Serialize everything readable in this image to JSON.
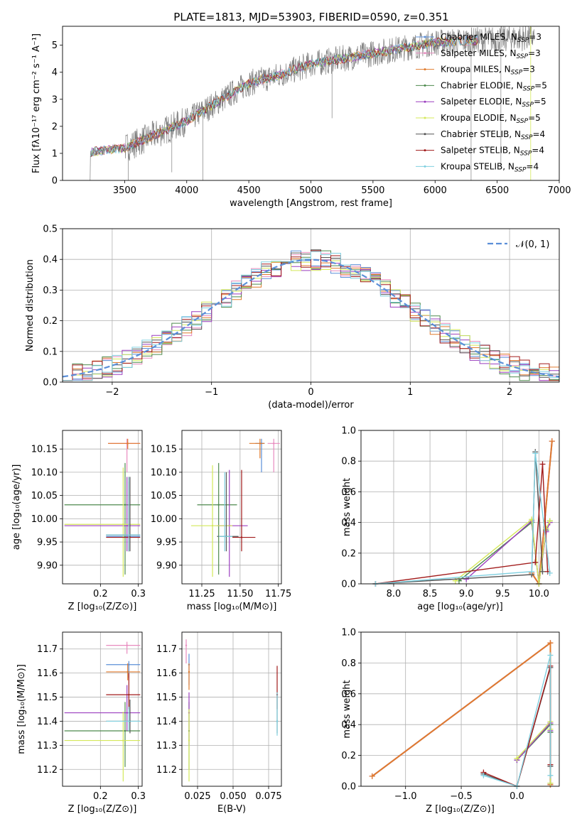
{
  "title": "PLATE=1813, MJD=53903, FIBERID=0590, z=0.351",
  "colors": {
    "Chabrier MILES": "#5b8fd8",
    "Salpeter MILES": "#e88bbf",
    "Kroupa MILES": "#e07b2e",
    "Chabrier ELODIE": "#4e8a4e",
    "Salpeter ELODIE": "#9b3fbf",
    "Kroupa ELODIE": "#d4e85a",
    "Chabrier STELIB": "#555555",
    "Salpeter STELIB": "#a11a1a",
    "Kroupa STELIB": "#80d0e0",
    "gauss": "#5b8fd8"
  },
  "chart_data": [
    {
      "type": "line",
      "name": "spectrum",
      "xlabel": "wavelength [Angstrom, rest frame]",
      "ylabel": "Flux [fλ10⁻¹⁷ erg cm⁻² s⁻¹ A⁻¹]",
      "xlim": [
        3000,
        7000
      ],
      "ylim": [
        0,
        5.7
      ],
      "xticks": [
        "3500",
        "4000",
        "4500",
        "5000",
        "5500",
        "6000",
        "6500",
        "7000"
      ],
      "yticks": [
        "0",
        "1",
        "2",
        "3",
        "4",
        "5"
      ],
      "observed_flux_anchors": [
        [
          3225,
          1.05
        ],
        [
          3500,
          1.2
        ],
        [
          3700,
          1.6
        ],
        [
          4000,
          2.2
        ],
        [
          4250,
          2.9
        ],
        [
          4500,
          3.6
        ],
        [
          4750,
          3.9
        ],
        [
          5000,
          4.3
        ],
        [
          5250,
          4.5
        ],
        [
          5500,
          4.7
        ],
        [
          5750,
          4.9
        ],
        [
          6000,
          5.1
        ],
        [
          6400,
          5.2
        ],
        [
          6800,
          5.3
        ]
      ],
      "legend": [
        {
          "label": "Chabrier MILES, N",
          "sub": "SSP",
          "val": "=3"
        },
        {
          "label": "Salpeter MILES, N",
          "sub": "SSP",
          "val": "=3"
        },
        {
          "label": "Kroupa MILES, N",
          "sub": "SSP",
          "val": "=3"
        },
        {
          "label": "Chabrier ELODIE, N",
          "sub": "SSP",
          "val": "=5"
        },
        {
          "label": "Salpeter ELODIE, N",
          "sub": "SSP",
          "val": "=5"
        },
        {
          "label": "Kroupa ELODIE, N",
          "sub": "SSP",
          "val": "=5"
        },
        {
          "label": "Chabrier STELIB, N",
          "sub": "SSP",
          "val": "=4"
        },
        {
          "label": "Salpeter STELIB, N",
          "sub": "SSP",
          "val": "=4"
        },
        {
          "label": "Kroupa STELIB, N",
          "sub": "SSP",
          "val": "=4"
        }
      ]
    },
    {
      "type": "line",
      "name": "residuals",
      "xlabel": "(data-model)/error",
      "ylabel": "Normed distribution",
      "xlim": [
        -2.5,
        2.5
      ],
      "ylim": [
        0,
        0.5
      ],
      "grid": true,
      "xticks": [
        "−2",
        "−1",
        "0",
        "1",
        "2"
      ],
      "yticks": [
        "0.0",
        "0.1",
        "0.2",
        "0.3",
        "0.4",
        "0.5"
      ],
      "legend": "𝒩(0, 1)",
      "bin_width": 0.1
    },
    {
      "type": "scatter",
      "name": "age-vs-Z",
      "xlabel": "Z [log₁₀(Z/Z⊙)]",
      "ylabel": "age  [log₁₀(age/yr)]",
      "xlim": [
        0.1,
        0.31
      ],
      "ylim": [
        9.86,
        10.19
      ],
      "xticks": [
        "0.2",
        "0.3"
      ],
      "yticks": [
        "9.90",
        "9.95",
        "10.00",
        "10.05",
        "10.10",
        "10.15"
      ],
      "points": [
        {
          "model": "Chabrier MILES",
          "x": 0.275,
          "y": 9.962,
          "xerr": [
            0.215,
            0.305
          ],
          "yerr": [
            9.93,
            10.08
          ]
        },
        {
          "model": "Salpeter MILES",
          "x": 0.27,
          "y": 10.162,
          "xerr": [
            0.22,
            0.305
          ],
          "yerr": [
            10.1,
            10.172
          ]
        },
        {
          "model": "Kroupa MILES",
          "x": 0.272,
          "y": 10.162,
          "xerr": [
            0.22,
            0.305
          ],
          "yerr": [
            10.15,
            10.172
          ]
        },
        {
          "model": "Chabrier ELODIE",
          "x": 0.265,
          "y": 10.03,
          "xerr": [
            0.105,
            0.305
          ],
          "yerr": [
            9.88,
            10.12
          ]
        },
        {
          "model": "Salpeter ELODIE",
          "x": 0.27,
          "y": 9.985,
          "xerr": [
            0.105,
            0.305
          ],
          "yerr": [
            9.93,
            10.09
          ]
        },
        {
          "model": "Kroupa ELODIE",
          "x": 0.26,
          "y": 9.988,
          "xerr": [
            0.105,
            0.305
          ],
          "yerr": [
            9.875,
            10.11
          ]
        },
        {
          "model": "Chabrier STELIB",
          "x": 0.278,
          "y": 9.965,
          "xerr": [
            0.215,
            0.305
          ],
          "yerr": [
            9.93,
            10.09
          ]
        },
        {
          "model": "Salpeter STELIB",
          "x": 0.275,
          "y": 9.96,
          "xerr": [
            0.215,
            0.305
          ],
          "yerr": [
            9.93,
            10.09
          ]
        },
        {
          "model": "Kroupa STELIB",
          "x": 0.275,
          "y": 9.965,
          "xerr": [
            0.215,
            0.305
          ],
          "yerr": [
            9.93,
            10.09
          ]
        }
      ]
    },
    {
      "type": "scatter",
      "name": "age-vs-mass",
      "xlabel": "mass [log₁₀(M/M⊙)]",
      "xlim": [
        11.12,
        11.77
      ],
      "ylim": [
        9.86,
        10.19
      ],
      "xticks": [
        "11.25",
        "11.50",
        "11.75"
      ],
      "points": [
        {
          "model": "Chabrier MILES",
          "x": 11.64,
          "y": 10.162,
          "xerr": [
            11.6,
            11.66
          ],
          "yerr": [
            10.1,
            10.172
          ]
        },
        {
          "model": "Salpeter MILES",
          "x": 11.72,
          "y": 10.162,
          "xerr": [
            11.68,
            11.76
          ],
          "yerr": [
            10.1,
            10.172
          ]
        },
        {
          "model": "Kroupa MILES",
          "x": 11.63,
          "y": 10.162,
          "xerr": [
            11.56,
            11.66
          ],
          "yerr": [
            10.13,
            10.172
          ]
        },
        {
          "model": "Chabrier ELODIE",
          "x": 11.36,
          "y": 10.03,
          "xerr": [
            11.22,
            11.48
          ],
          "yerr": [
            9.88,
            10.12
          ]
        },
        {
          "model": "Salpeter ELODIE",
          "x": 11.43,
          "y": 9.985,
          "xerr": [
            11.35,
            11.55
          ],
          "yerr": [
            9.875,
            10.105
          ]
        },
        {
          "model": "Kroupa ELODIE",
          "x": 11.32,
          "y": 9.985,
          "xerr": [
            11.18,
            11.45
          ],
          "yerr": [
            9.875,
            10.115
          ]
        },
        {
          "model": "Chabrier STELIB",
          "x": 11.41,
          "y": 9.962,
          "xerr": [
            11.35,
            11.49
          ],
          "yerr": [
            9.93,
            10.1
          ]
        },
        {
          "model": "Salpeter STELIB",
          "x": 11.51,
          "y": 9.96,
          "xerr": [
            11.45,
            11.6
          ],
          "yerr": [
            9.93,
            10.105
          ]
        },
        {
          "model": "Kroupa STELIB",
          "x": 11.4,
          "y": 9.962,
          "xerr": [
            11.36,
            11.45
          ],
          "yerr": [
            9.93,
            10.1
          ]
        }
      ]
    },
    {
      "type": "line",
      "name": "weight-vs-age",
      "xlabel": "age  [log₁₀(age/yr)]",
      "ylabel": "mass weight",
      "xlim": [
        7.55,
        10.28
      ],
      "ylim": [
        0,
        1.0
      ],
      "grid": true,
      "xticks": [
        "8.0",
        "8.5",
        "9.0",
        "9.5",
        "10.0"
      ],
      "yticks": [
        "0.0",
        "0.2",
        "0.4",
        "0.6",
        "0.8",
        "1.0"
      ],
      "series": [
        {
          "model": "Chabrier MILES",
          "x": [
            9.9,
            10.0,
            10.18
          ],
          "y": [
            0.07,
            0.0,
            0.93
          ]
        },
        {
          "model": "Salpeter MILES",
          "x": [
            9.9,
            10.0,
            10.18
          ],
          "y": [
            0.07,
            0.0,
            0.93
          ]
        },
        {
          "model": "Kroupa MILES",
          "x": [
            9.9,
            10.0,
            10.18
          ],
          "y": [
            0.07,
            0.0,
            0.93
          ]
        },
        {
          "model": "Chabrier ELODIE",
          "x": [
            8.9,
            9.9,
            10.0,
            10.1,
            10.15
          ],
          "y": [
            0.02,
            0.4,
            0.0,
            0.35,
            0.41
          ]
        },
        {
          "model": "Salpeter ELODIE",
          "x": [
            9.0,
            9.9,
            10.0,
            10.1,
            10.15
          ],
          "y": [
            0.03,
            0.41,
            0.0,
            0.34,
            0.4
          ]
        },
        {
          "model": "Kroupa ELODIE",
          "x": [
            8.85,
            9.9,
            10.0,
            10.1,
            10.15
          ],
          "y": [
            0.02,
            0.42,
            0.0,
            0.36,
            0.41
          ]
        },
        {
          "model": "Chabrier STELIB",
          "x": [
            7.75,
            9.9,
            9.95,
            10.05
          ],
          "y": [
            0.0,
            0.06,
            0.86,
            0.08
          ]
        },
        {
          "model": "Salpeter STELIB",
          "x": [
            7.75,
            9.95,
            10.05,
            10.12
          ],
          "y": [
            0.0,
            0.14,
            0.78,
            0.08
          ]
        },
        {
          "model": "Kroupa STELIB",
          "x": [
            7.75,
            9.9,
            9.95,
            10.15
          ],
          "y": [
            0.0,
            0.08,
            0.85,
            0.07
          ]
        }
      ]
    },
    {
      "type": "scatter",
      "name": "mass-vs-Z",
      "xlabel": "Z [log₁₀(Z/Z⊙)]",
      "ylabel": "mass [log₁₀(M/M⊙)]",
      "xlim": [
        0.1,
        0.31
      ],
      "ylim": [
        11.13,
        11.77
      ],
      "xticks": [
        "0.2",
        "0.3"
      ],
      "yticks": [
        "11.2",
        "11.3",
        "11.4",
        "11.5",
        "11.6",
        "11.7"
      ],
      "points": [
        {
          "model": "Chabrier MILES",
          "x": 0.275,
          "y": 11.635,
          "xerr": [
            0.215,
            0.305
          ],
          "yerr": [
            11.58,
            11.65
          ]
        },
        {
          "model": "Salpeter MILES",
          "x": 0.27,
          "y": 11.715,
          "xerr": [
            0.215,
            0.305
          ],
          "yerr": [
            11.68,
            11.73
          ]
        },
        {
          "model": "Kroupa MILES",
          "x": 0.272,
          "y": 11.605,
          "xerr": [
            0.215,
            0.305
          ],
          "yerr": [
            11.57,
            11.64
          ]
        },
        {
          "model": "Chabrier ELODIE",
          "x": 0.265,
          "y": 11.36,
          "xerr": [
            0.105,
            0.305
          ],
          "yerr": [
            11.21,
            11.48
          ]
        },
        {
          "model": "Salpeter ELODIE",
          "x": 0.27,
          "y": 11.435,
          "xerr": [
            0.105,
            0.305
          ],
          "yerr": [
            11.36,
            11.55
          ]
        },
        {
          "model": "Kroupa ELODIE",
          "x": 0.26,
          "y": 11.32,
          "xerr": [
            0.105,
            0.305
          ],
          "yerr": [
            11.15,
            11.44
          ]
        },
        {
          "model": "Chabrier STELIB",
          "x": 0.278,
          "y": 11.4,
          "xerr": [
            0.215,
            0.305
          ],
          "yerr": [
            11.35,
            11.49
          ]
        },
        {
          "model": "Salpeter STELIB",
          "x": 0.275,
          "y": 11.51,
          "xerr": [
            0.215,
            0.305
          ],
          "yerr": [
            11.45,
            11.6
          ]
        },
        {
          "model": "Kroupa STELIB",
          "x": 0.275,
          "y": 11.4,
          "xerr": [
            0.215,
            0.305
          ],
          "yerr": [
            11.36,
            11.46
          ]
        }
      ]
    },
    {
      "type": "scatter",
      "name": "mass-vs-ebv",
      "xlabel": "E(B-V)",
      "xlim": [
        0.014,
        0.084
      ],
      "ylim": [
        11.13,
        11.77
      ],
      "xticks": [
        "0.025",
        "0.050",
        "0.075"
      ],
      "points": [
        {
          "model": "Chabrier MILES",
          "x": 0.019,
          "y": 11.635,
          "xerr": [
            0.019,
            0.019
          ],
          "yerr": [
            11.55,
            11.68
          ]
        },
        {
          "model": "Salpeter MILES",
          "x": 0.017,
          "y": 11.715,
          "xerr": [
            0.017,
            0.017
          ],
          "yerr": [
            11.64,
            11.74
          ]
        },
        {
          "model": "Kroupa MILES",
          "x": 0.019,
          "y": 11.605,
          "xerr": [
            0.019,
            0.019
          ],
          "yerr": [
            11.53,
            11.64
          ]
        },
        {
          "model": "Chabrier ELODIE",
          "x": 0.019,
          "y": 11.36,
          "xerr": [
            0.019,
            0.019
          ],
          "yerr": [
            11.2,
            11.48
          ]
        },
        {
          "model": "Salpeter ELODIE",
          "x": 0.019,
          "y": 11.435,
          "xerr": [
            0.019,
            0.019
          ],
          "yerr": [
            11.3,
            11.52
          ]
        },
        {
          "model": "Kroupa ELODIE",
          "x": 0.019,
          "y": 11.32,
          "xerr": [
            0.019,
            0.019
          ],
          "yerr": [
            11.15,
            11.45
          ]
        },
        {
          "model": "Chabrier STELIB",
          "x": 0.081,
          "y": 11.4,
          "xerr": [
            0.081,
            0.081
          ],
          "yerr": [
            11.35,
            11.52
          ]
        },
        {
          "model": "Salpeter STELIB",
          "x": 0.081,
          "y": 11.51,
          "xerr": [
            0.081,
            0.081
          ],
          "yerr": [
            11.45,
            11.63
          ]
        },
        {
          "model": "Kroupa STELIB",
          "x": 0.081,
          "y": 11.4,
          "xerr": [
            0.081,
            0.081
          ],
          "yerr": [
            11.34,
            11.52
          ]
        }
      ]
    },
    {
      "type": "line",
      "name": "weight-vs-Z",
      "xlabel": "Z [log₁₀(Z/Z⊙)]",
      "ylabel": "mass weight",
      "xlim": [
        -1.4,
        0.38
      ],
      "ylim": [
        0,
        1.0
      ],
      "grid": true,
      "xticks": [
        "−1.0",
        "−0.5",
        "0.0"
      ],
      "yticks": [
        "0.0",
        "0.2",
        "0.4",
        "0.6",
        "0.8",
        "1.0"
      ],
      "series": [
        {
          "model": "Chabrier MILES",
          "x": [
            -1.3,
            0.3,
            0.3
          ],
          "y": [
            0.065,
            0.93,
            0.01
          ]
        },
        {
          "model": "Salpeter MILES",
          "x": [
            -1.3,
            0.3,
            0.3
          ],
          "y": [
            0.065,
            0.93,
            0.01
          ]
        },
        {
          "model": "Kroupa MILES",
          "x": [
            -1.3,
            0.3,
            0.3
          ],
          "y": [
            0.065,
            0.93,
            0.01
          ]
        },
        {
          "model": "Chabrier ELODIE",
          "x": [
            0.0,
            0.3,
            0.3,
            0.3
          ],
          "y": [
            0.17,
            0.4,
            0.35,
            0.02
          ]
        },
        {
          "model": "Salpeter ELODIE",
          "x": [
            0.0,
            0.3,
            0.3,
            0.3
          ],
          "y": [
            0.17,
            0.41,
            0.36,
            0.02
          ]
        },
        {
          "model": "Kroupa ELODIE",
          "x": [
            0.0,
            0.3,
            0.3,
            0.3
          ],
          "y": [
            0.18,
            0.42,
            0.37,
            0.02
          ]
        },
        {
          "model": "Chabrier STELIB",
          "x": [
            -0.3,
            0.0,
            0.3,
            0.3
          ],
          "y": [
            0.08,
            0.0,
            0.77,
            0.13
          ]
        },
        {
          "model": "Salpeter STELIB",
          "x": [
            -0.3,
            0.0,
            0.3,
            0.3
          ],
          "y": [
            0.09,
            0.0,
            0.78,
            0.14
          ]
        },
        {
          "model": "Kroupa STELIB",
          "x": [
            -0.3,
            0.0,
            0.3,
            0.3
          ],
          "y": [
            0.07,
            0.0,
            0.85,
            0.07
          ]
        }
      ]
    }
  ]
}
